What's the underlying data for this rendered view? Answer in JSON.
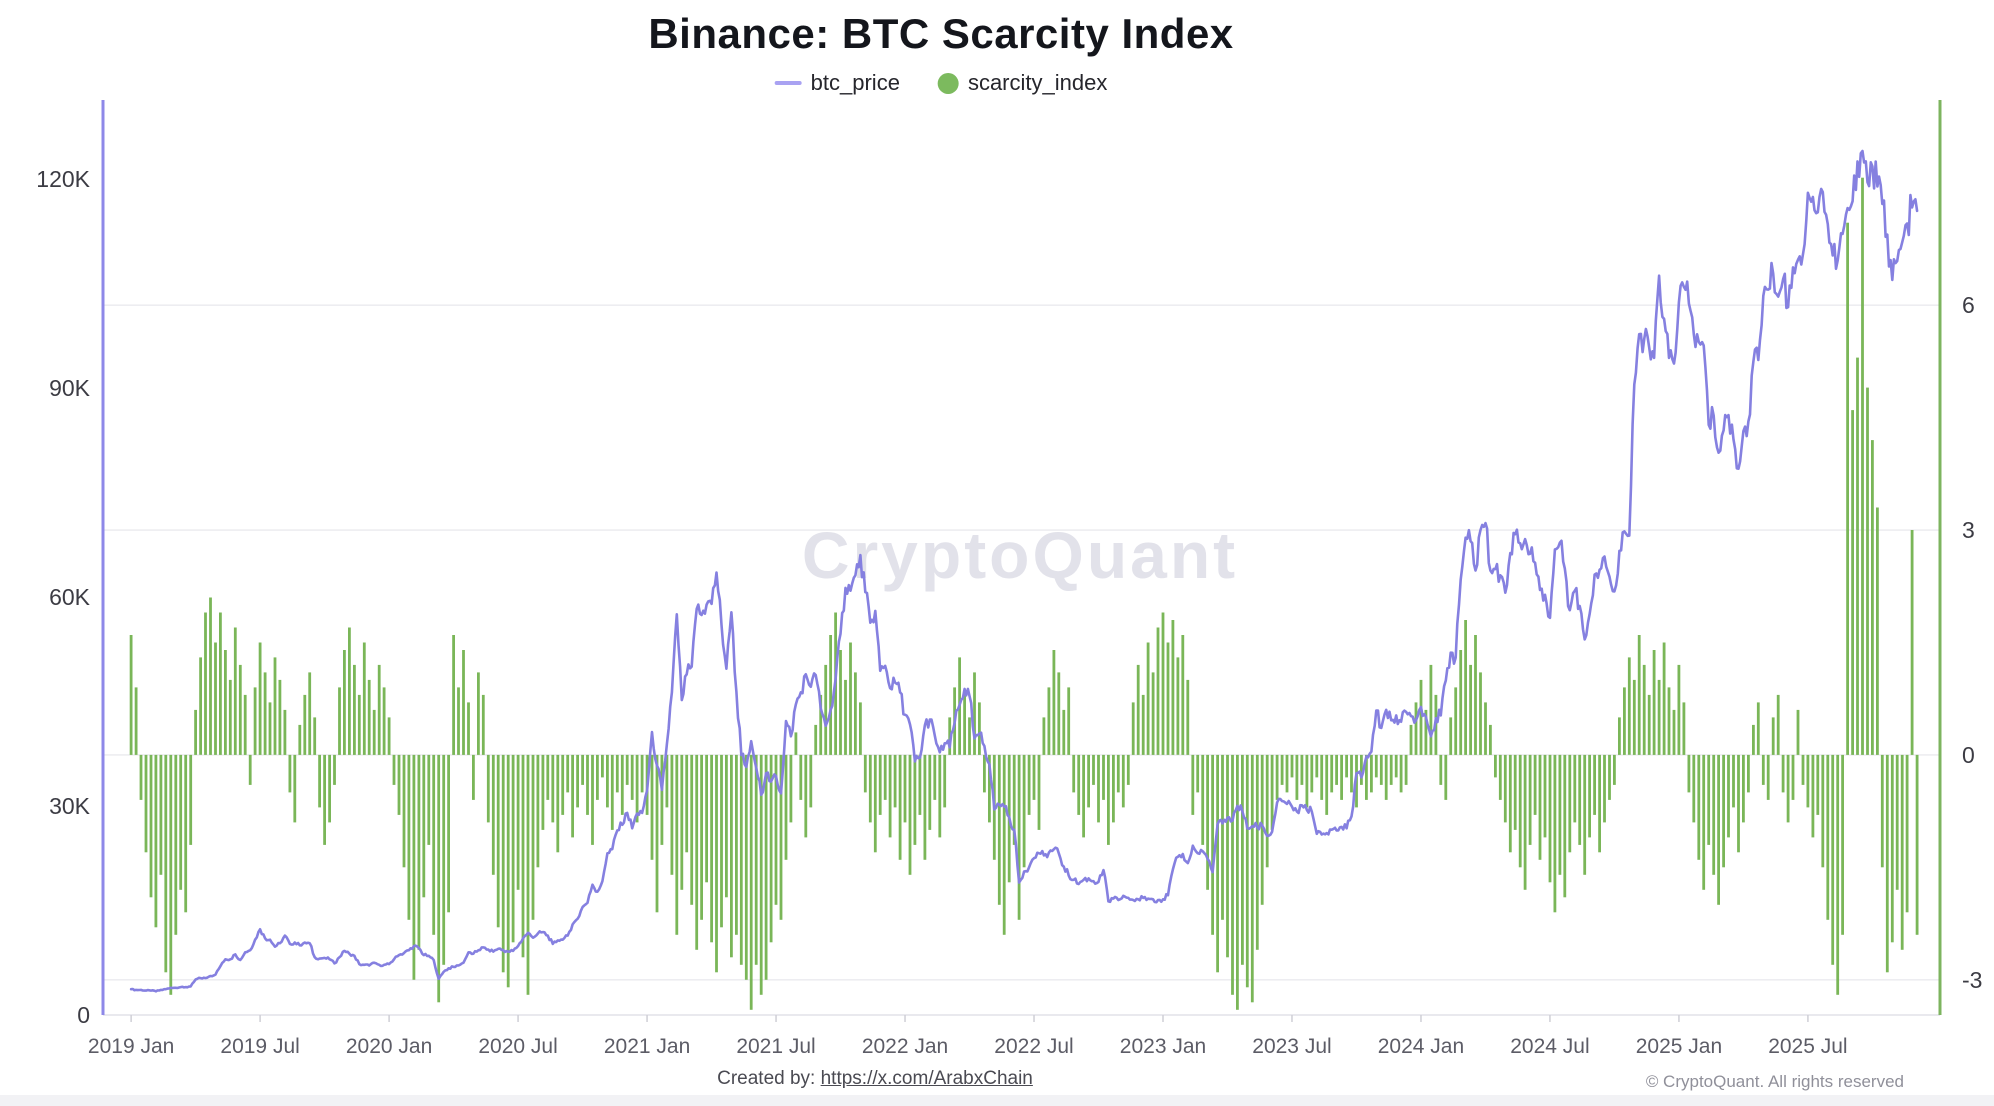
{
  "title": "Binance: BTC Scarcity Index",
  "watermark": "CryptoQuant",
  "legend": {
    "items": [
      {
        "label": "btc_price",
        "swatch": "line-icon",
        "color": "#a9a2f2"
      },
      {
        "label": "scarcity_index",
        "swatch": "dot-icon",
        "color": "#7cba5e"
      }
    ]
  },
  "footer": {
    "created_by_prefix": "Created by: ",
    "created_by_link": "https://x.com/ArabxChain",
    "copyright": "© CryptoQuant. All rights reserved"
  },
  "colors": {
    "price_line": "#8580e0",
    "left_axis": "#8e88e8",
    "bars": "#73b24f",
    "right_axis": "#7db45f",
    "gridline": "#ededf1",
    "baseline": "#e2e2e8",
    "tick_mark": "#cfcfd6",
    "y_label": "#3c3c44",
    "x_label": "#5c5c66",
    "watermark": "#e2e2ea"
  },
  "chart_data": {
    "type": "mixed",
    "subtypes": {
      "btc_price": "line",
      "scarcity_index": "bar"
    },
    "title": "Binance: BTC Scarcity Index",
    "x_unit": "decimal_year",
    "x_start": 2019.0,
    "x_step_years": 0.0192308,
    "x_range": [
      2018.891,
      2026.012
    ],
    "left_ylim": [
      0,
      130.6
    ],
    "right_ylim": [
      -3.47,
      8.67
    ],
    "price_unit": "thousand_usd",
    "grid": "horizontal-right-axis",
    "legend_position": "top-center",
    "axes": {
      "left_ticks": [
        {
          "label": "0",
          "value": 0
        },
        {
          "label": "30K",
          "value": 30
        },
        {
          "label": "60K",
          "value": 60
        },
        {
          "label": "90K",
          "value": 90
        },
        {
          "label": "120K",
          "value": 120
        }
      ],
      "right_ticks": [
        {
          "label": "6",
          "value": 6
        },
        {
          "label": "3",
          "value": 3
        },
        {
          "label": "0",
          "value": 0
        },
        {
          "label": "-3",
          "value": -3
        }
      ],
      "x_ticks": [
        {
          "label": "2019 Jan",
          "t": 2019.0
        },
        {
          "label": "2019 Jul",
          "t": 2019.5
        },
        {
          "label": "2020 Jan",
          "t": 2020.0
        },
        {
          "label": "2020 Jul",
          "t": 2020.5
        },
        {
          "label": "2021 Jan",
          "t": 2021.0
        },
        {
          "label": "2021 Jul",
          "t": 2021.5
        },
        {
          "label": "2022 Jan",
          "t": 2022.0
        },
        {
          "label": "2022 Jul",
          "t": 2022.5
        },
        {
          "label": "2023 Jan",
          "t": 2023.0
        },
        {
          "label": "2023 Jul",
          "t": 2023.5
        },
        {
          "label": "2024 Jan",
          "t": 2024.0
        },
        {
          "label": "2024 Jul",
          "t": 2024.5
        },
        {
          "label": "2025 Jan",
          "t": 2025.0
        },
        {
          "label": "2025 Jul",
          "t": 2025.5
        }
      ]
    },
    "series": [
      {
        "name": "btc_price",
        "axis": "left",
        "color": "#8580e0",
        "values": [
          3.7,
          3.6,
          3.6,
          3.5,
          3.5,
          3.4,
          3.6,
          3.7,
          3.9,
          3.9,
          4.0,
          4.0,
          4.1,
          5.1,
          5.3,
          5.3,
          5.6,
          5.8,
          7.0,
          8.0,
          8.0,
          8.7,
          7.9,
          9.0,
          9.3,
          10.8,
          12.3,
          11.0,
          10.8,
          9.8,
          10.3,
          11.4,
          10.2,
          10.4,
          10.0,
          10.4,
          10.3,
          8.3,
          8.1,
          8.2,
          8.0,
          7.4,
          8.3,
          9.2,
          8.8,
          8.5,
          7.3,
          7.2,
          7.1,
          7.5,
          7.2,
          7.2,
          7.3,
          8.0,
          8.6,
          8.9,
          9.3,
          9.9,
          9.6,
          8.6,
          8.5,
          7.9,
          5.2,
          6.2,
          6.7,
          6.9,
          7.1,
          7.5,
          9.0,
          8.8,
          9.3,
          9.7,
          9.4,
          9.1,
          9.5,
          9.3,
          9.1,
          9.2,
          9.9,
          11.0,
          11.8,
          11.1,
          11.7,
          11.9,
          11.4,
          10.2,
          10.7,
          10.8,
          11.4,
          13.0,
          13.8,
          15.5,
          16.1,
          18.7,
          17.7,
          19.2,
          23.2,
          23.8,
          26.5,
          27.3,
          29.0,
          26.8,
          28.9,
          29.0,
          32.2,
          40.6,
          35.8,
          32.3,
          38.9,
          46.3,
          57.5,
          45.2,
          48.9,
          50.0,
          58.3,
          57.4,
          58.9,
          59.0,
          63.5,
          56.0,
          49.7,
          57.8,
          46.4,
          37.3,
          35.6,
          39.3,
          35.5,
          31.6,
          34.7,
          33.5,
          34.3,
          31.8,
          42.2,
          40.0,
          44.6,
          46.3,
          48.9,
          47.1,
          48.8,
          44.0,
          41.5,
          43.8,
          48.2,
          54.7,
          61.3,
          60.9,
          63.1,
          66.0,
          60.7,
          56.3,
          58.0,
          49.4,
          50.1,
          46.9,
          47.7,
          46.3,
          43.1,
          41.7,
          36.4,
          36.9,
          41.6,
          42.4,
          40.1,
          37.7,
          39.0,
          38.4,
          41.9,
          44.5,
          46.8,
          45.8,
          39.7,
          40.4,
          38.6,
          36.0,
          29.5,
          30.2,
          29.9,
          28.4,
          26.6,
          19.0,
          20.6,
          21.2,
          22.5,
          23.2,
          22.9,
          23.3,
          23.8,
          23.2,
          21.3,
          20.0,
          19.4,
          18.8,
          19.4,
          19.6,
          19.2,
          19.1,
          20.8,
          16.3,
          16.7,
          16.5,
          17.1,
          16.8,
          16.5,
          16.6,
          16.8,
          16.7,
          16.6,
          16.5,
          16.6,
          17.2,
          20.9,
          22.7,
          23.1,
          21.8,
          24.3,
          23.2,
          23.5,
          22.4,
          20.5,
          27.4,
          27.5,
          28.3,
          27.9,
          30.0,
          29.2,
          26.8,
          27.1,
          26.9,
          27.2,
          25.7,
          26.3,
          30.5,
          30.7,
          30.3,
          29.9,
          29.2,
          30.1,
          29.4,
          29.2,
          26.0,
          25.9,
          26.1,
          26.6,
          26.5,
          27.0,
          26.8,
          28.5,
          34.7,
          34.1,
          37.1,
          37.8,
          43.7,
          41.2,
          43.8,
          42.3,
          43.0,
          42.1,
          43.5,
          42.9,
          42.3,
          44.2,
          42.8,
          40.0,
          42.6,
          43.0,
          48.0,
          52.0,
          51.3,
          62.5,
          68.5,
          68.0,
          63.8,
          69.6,
          70.6,
          63.8,
          64.0,
          63.1,
          60.6,
          66.3,
          69.0,
          67.7,
          68.3,
          66.2,
          64.9,
          61.0,
          60.3,
          57.0,
          66.8,
          67.8,
          64.1,
          58.1,
          60.9,
          58.7,
          53.9,
          57.5,
          63.2,
          63.9,
          65.8,
          62.9,
          60.8,
          66.6,
          69.4,
          68.8,
          90.5,
          97.7,
          97.0,
          95.8,
          94.3,
          106.1,
          99.9,
          94.3,
          93.5,
          102.3,
          104.5,
          102.1,
          97.7,
          96.6,
          96.1,
          84.7,
          86.0,
          80.7,
          83.9,
          86.1,
          82.6,
          78.4,
          83.8,
          85.2,
          93.8,
          94.0,
          103.2,
          104.1,
          106.4,
          103.1,
          105.6,
          101.6,
          107.3,
          108.4,
          109.2,
          118.0,
          117.4,
          115.2,
          118.1,
          113.5,
          109.0,
          108.3,
          112.1,
          115.8,
          116.8,
          122.5,
          124.0,
          119.5,
          121.8,
          118.9,
          116.4,
          112.0,
          105.5,
          108.2,
          110.9,
          113.6,
          115.9,
          115.4
        ]
      },
      {
        "name": "scarcity_index",
        "axis": "right",
        "color": "#73b24f",
        "values": [
          1.6,
          0.9,
          -0.6,
          -1.3,
          -1.9,
          -2.3,
          -1.6,
          -2.9,
          -3.2,
          -2.4,
          -1.8,
          -2.1,
          -1.2,
          0.6,
          1.3,
          1.9,
          2.1,
          1.5,
          1.9,
          1.4,
          1.0,
          1.7,
          1.2,
          0.8,
          -0.4,
          0.9,
          1.5,
          1.1,
          0.7,
          1.3,
          1.0,
          0.6,
          -0.5,
          -0.9,
          0.4,
          0.8,
          1.1,
          0.5,
          -0.7,
          -1.2,
          -0.9,
          -0.4,
          0.9,
          1.4,
          1.7,
          1.2,
          0.8,
          1.5,
          1.0,
          0.6,
          1.2,
          0.9,
          0.5,
          -0.4,
          -0.8,
          -1.5,
          -2.2,
          -3.0,
          -2.6,
          -1.9,
          -1.2,
          -2.4,
          -3.3,
          -2.8,
          -2.1,
          1.6,
          0.9,
          1.4,
          0.7,
          -0.6,
          1.1,
          0.8,
          -0.9,
          -1.6,
          -2.3,
          -2.9,
          -3.1,
          -2.5,
          -1.8,
          -2.7,
          -3.2,
          -2.2,
          -1.5,
          -1.0,
          -0.6,
          -0.9,
          -1.3,
          -0.8,
          -0.5,
          -1.1,
          -0.7,
          -0.4,
          -0.8,
          -1.2,
          -0.6,
          -0.3,
          -0.7,
          -1.0,
          -0.5,
          -0.8,
          -0.4,
          -0.6,
          -0.9,
          -0.5,
          -0.8,
          -1.4,
          -2.1,
          -1.2,
          -0.7,
          -1.6,
          -2.4,
          -1.8,
          -1.3,
          -2.0,
          -2.6,
          -2.2,
          -1.7,
          -2.5,
          -2.9,
          -2.3,
          -1.9,
          -2.7,
          -2.4,
          -2.8,
          -3.0,
          -3.4,
          -2.8,
          -3.2,
          -3.0,
          -2.5,
          -2.0,
          -2.2,
          -1.4,
          -0.9,
          0.3,
          -0.6,
          -1.1,
          -0.7,
          0.4,
          0.8,
          1.2,
          1.6,
          1.9,
          1.4,
          1.0,
          1.5,
          1.1,
          0.7,
          -0.5,
          -0.9,
          -1.3,
          -0.8,
          -0.6,
          -1.1,
          -0.7,
          -1.4,
          -0.9,
          -1.6,
          -1.2,
          -0.8,
          -1.4,
          -1.0,
          -0.6,
          -1.1,
          -0.7,
          0.5,
          0.9,
          1.3,
          0.8,
          0.5,
          1.1,
          0.7,
          -0.5,
          -0.9,
          -1.4,
          -2.0,
          -2.4,
          -1.7,
          -1.2,
          -2.2,
          -1.5,
          -0.8,
          -0.6,
          -1.0,
          0.5,
          0.9,
          1.4,
          1.1,
          0.6,
          0.9,
          -0.5,
          -0.8,
          -1.1,
          -0.7,
          -0.4,
          -0.9,
          -0.6,
          -1.2,
          -0.9,
          -0.5,
          -0.7,
          -0.4,
          0.7,
          1.2,
          0.8,
          1.5,
          1.1,
          1.7,
          1.9,
          1.5,
          1.8,
          1.3,
          1.6,
          1.0,
          -0.8,
          -0.5,
          -1.2,
          -1.8,
          -2.4,
          -2.9,
          -2.2,
          -2.7,
          -3.2,
          -3.4,
          -2.8,
          -3.1,
          -3.3,
          -2.6,
          -2.0,
          -1.5,
          -1.0,
          -0.6,
          -0.4,
          -0.5,
          -0.3,
          -0.6,
          -0.4,
          -0.7,
          -0.5,
          -0.3,
          -0.6,
          -0.8,
          -0.5,
          -0.4,
          -0.6,
          -0.3,
          -0.5,
          -0.7,
          -0.4,
          -0.6,
          -0.5,
          -0.3,
          -0.4,
          -0.6,
          -0.4,
          -0.3,
          -0.5,
          -0.4,
          0.4,
          0.7,
          1.0,
          0.6,
          1.2,
          0.8,
          -0.4,
          -0.6,
          0.5,
          0.9,
          1.4,
          1.8,
          1.2,
          1.6,
          1.1,
          0.7,
          0.4,
          -0.3,
          -0.6,
          -0.9,
          -1.3,
          -1.0,
          -1.5,
          -1.8,
          -1.2,
          -0.8,
          -1.4,
          -1.1,
          -1.7,
          -2.1,
          -1.6,
          -1.9,
          -1.3,
          -0.9,
          -1.2,
          -1.6,
          -1.1,
          -0.8,
          -1.3,
          -0.9,
          -0.6,
          -0.4,
          0.5,
          0.9,
          1.3,
          1.0,
          1.6,
          1.2,
          0.8,
          1.4,
          1.0,
          1.5,
          0.9,
          0.6,
          1.2,
          0.7,
          -0.5,
          -0.9,
          -1.4,
          -1.8,
          -1.2,
          -1.6,
          -2.0,
          -1.5,
          -1.1,
          -0.7,
          -1.3,
          -0.9,
          -0.5,
          0.4,
          0.7,
          -0.4,
          -0.6,
          0.5,
          0.8,
          -0.5,
          -0.9,
          -0.6,
          0.6,
          -0.4,
          -0.7,
          -1.1,
          -0.8,
          -1.5,
          -2.2,
          -2.8,
          -3.2,
          -2.4,
          7.1,
          4.6,
          5.3,
          7.7,
          4.9,
          4.2,
          3.3,
          -1.5,
          -2.9,
          -2.5,
          -1.8,
          -2.6,
          -2.1,
          3.0,
          -2.4
        ]
      }
    ]
  }
}
